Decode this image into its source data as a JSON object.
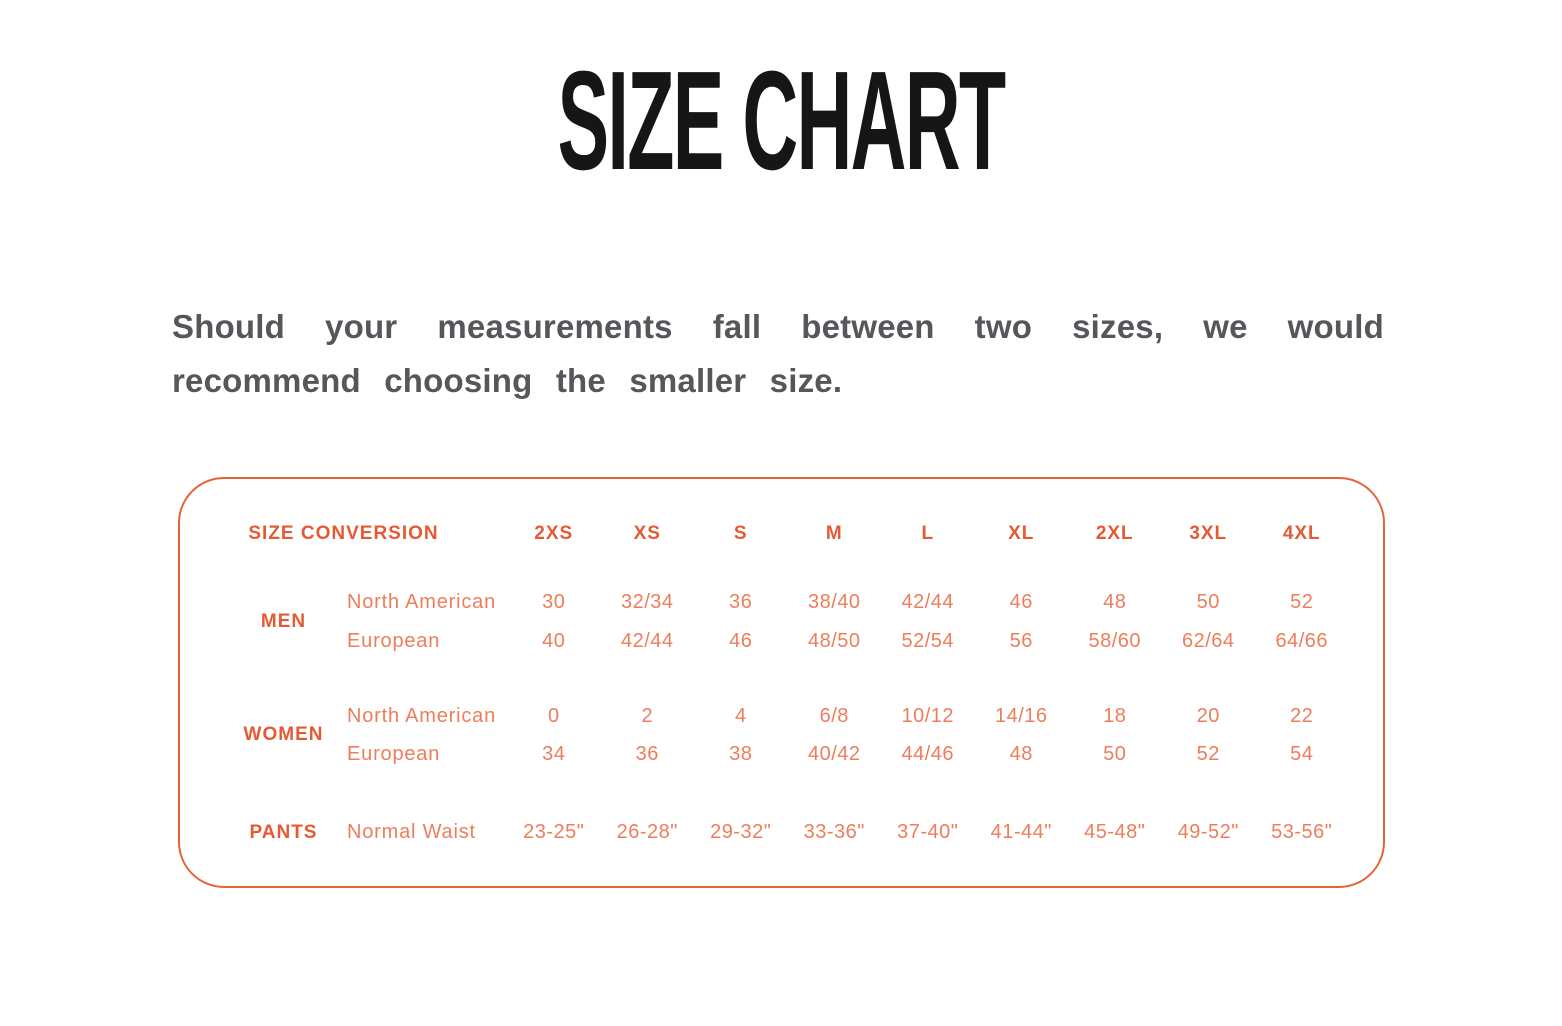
{
  "page": {
    "title": "SIZE CHART",
    "intro": "Should your measurements fall between two sizes, we would recommend choosing the smaller size."
  },
  "table": {
    "header_label": "SIZE CONVERSION",
    "sizes": [
      "2XS",
      "XS",
      "S",
      "M",
      "L",
      "XL",
      "2XL",
      "3XL",
      "4XL"
    ],
    "sections": [
      {
        "group": "MEN",
        "rows": [
          {
            "label": "North American",
            "values": [
              "30",
              "32/34",
              "36",
              "38/40",
              "42/44",
              "46",
              "48",
              "50",
              "52"
            ]
          },
          {
            "label": "European",
            "values": [
              "40",
              "42/44",
              "46",
              "48/50",
              "52/54",
              "56",
              "58/60",
              "62/64",
              "64/66"
            ]
          }
        ]
      },
      {
        "group": "WOMEN",
        "rows": [
          {
            "label": "North American",
            "values": [
              "0",
              "2",
              "4",
              "6/8",
              "10/12",
              "14/16",
              "18",
              "20",
              "22"
            ]
          },
          {
            "label": "European",
            "values": [
              "34",
              "36",
              "38",
              "40/42",
              "44/46",
              "48",
              "50",
              "52",
              "54"
            ]
          }
        ]
      },
      {
        "group": "PANTS",
        "rows": [
          {
            "label": "Normal Waist",
            "values": [
              "23-25\"",
              "26-28\"",
              "29-32\"",
              "33-36\"",
              "37-40\"",
              "41-44\"",
              "45-48\"",
              "49-52\"",
              "53-56\""
            ]
          }
        ]
      }
    ]
  },
  "colors": {
    "accent": "#e65a33",
    "soft_text": "#ee7d5b",
    "border": "#e5633b",
    "title_ink": "#161616",
    "intro_gray": "#56575b"
  }
}
